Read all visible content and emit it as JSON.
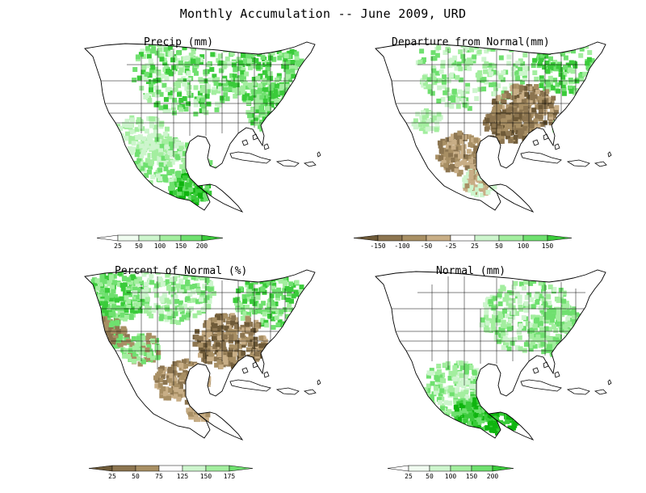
{
  "figure": {
    "title": "Monthly Accumulation -- June 2009, URD"
  },
  "colors": {
    "green": [
      "#f0fcf0",
      "#cdf5cd",
      "#a3ee9f",
      "#6fe06f",
      "#3acb3a",
      "#0fb50f"
    ],
    "brown": [
      "#6e5a38",
      "#8c7550",
      "#a88f64",
      "#c8ae86"
    ],
    "land_line": "#000000"
  },
  "panels": [
    {
      "id": "precip",
      "label": "Precip (mm)",
      "legend": {
        "type": "green",
        "ticks": [
          "25",
          "50",
          "100",
          "150",
          "200"
        ]
      }
    },
    {
      "id": "departure",
      "label": "Departure from Normal(mm)",
      "legend": {
        "type": "diverging",
        "ticks": [
          "-150",
          "-100",
          "-50",
          "-25",
          "25",
          "50",
          "100",
          "150"
        ]
      }
    },
    {
      "id": "percent",
      "label": "Percent of Normal (%)",
      "legend": {
        "type": "pct",
        "ticks": [
          "25",
          "50",
          "75",
          "125",
          "150",
          "175"
        ]
      }
    },
    {
      "id": "normal",
      "label": "Normal (mm)",
      "legend": {
        "type": "green",
        "ticks": [
          "25",
          "50",
          "100",
          "150",
          "200"
        ]
      }
    }
  ]
}
